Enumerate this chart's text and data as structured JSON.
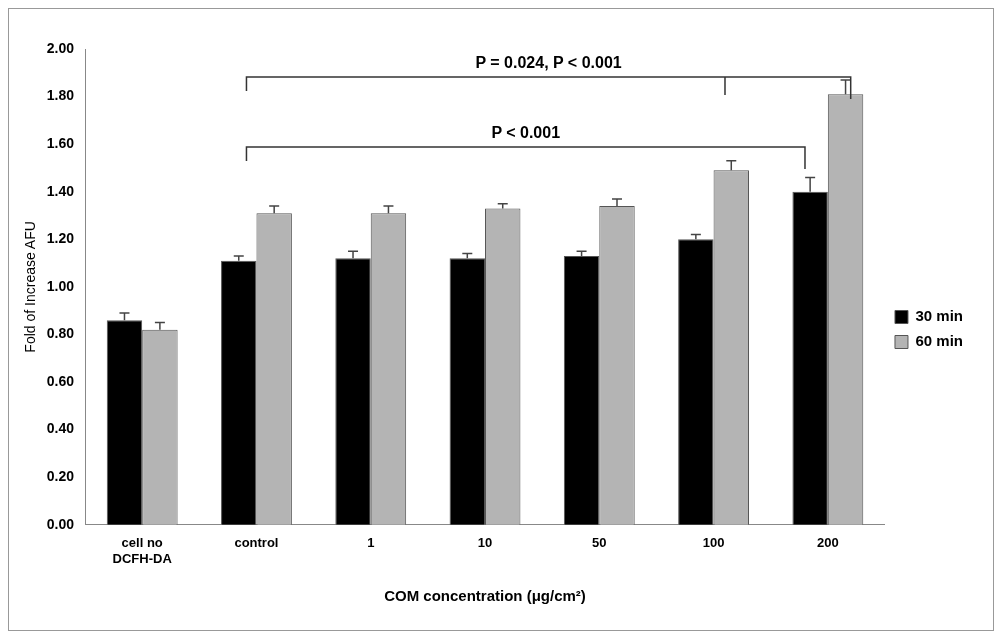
{
  "chart_data": {
    "type": "bar",
    "xlabel": "COM concentration (μg/cm²)",
    "ylabel": "Fold of Increase AFU",
    "categories": [
      "cell no DCFH-DA",
      "control",
      "1",
      "10",
      "50",
      "100",
      "200"
    ],
    "series": [
      {
        "name": "30 min",
        "color": "#000000",
        "values": [
          0.86,
          1.11,
          1.12,
          1.12,
          1.13,
          1.2,
          1.4
        ],
        "errors": [
          0.03,
          0.02,
          0.03,
          0.02,
          0.02,
          0.02,
          0.06
        ]
      },
      {
        "name": "60 min",
        "color": "#b4b4b4",
        "values": [
          0.82,
          1.31,
          1.31,
          1.33,
          1.34,
          1.49,
          1.81
        ],
        "errors": [
          0.03,
          0.03,
          0.03,
          0.02,
          0.03,
          0.04,
          0.06
        ]
      }
    ],
    "ylim": [
      0,
      2
    ],
    "yticks": [
      {
        "value": 0,
        "label": "0.00"
      },
      {
        "value": 0.2,
        "label": "0.20"
      },
      {
        "value": 0.4,
        "label": "0.40"
      },
      {
        "value": 0.6,
        "label": "0.60"
      },
      {
        "value": 0.8,
        "label": "0.80"
      },
      {
        "value": 1,
        "label": "1.00"
      },
      {
        "value": 1.2,
        "label": "1.20"
      },
      {
        "value": 1.4,
        "label": "1.40"
      },
      {
        "value": 1.6,
        "label": "1.60"
      },
      {
        "value": 1.8,
        "label": "1.80"
      },
      {
        "value": 2,
        "label": "2.00"
      }
    ],
    "grid": false,
    "legend": "right",
    "annotations": [
      "P = 0.024, P < 0.001",
      "P < 0.001"
    ]
  }
}
